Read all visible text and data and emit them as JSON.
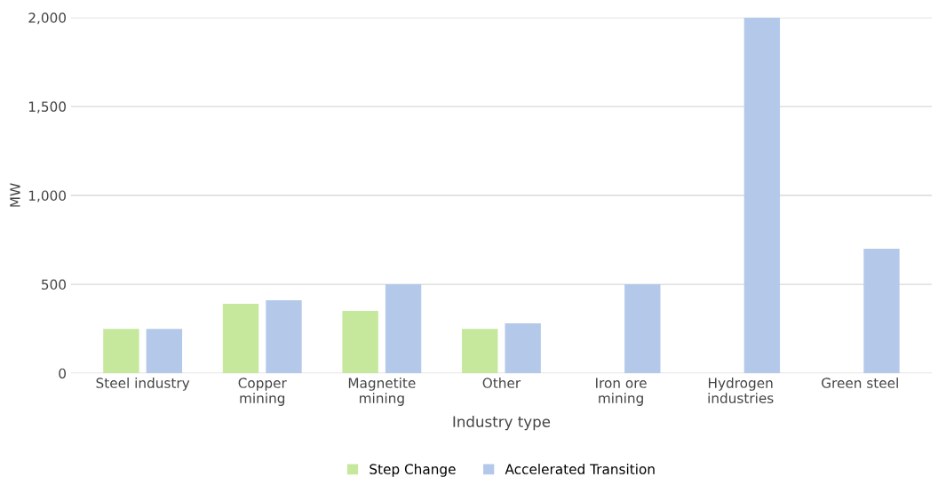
{
  "chart_data": {
    "type": "bar",
    "xlabel": "Industry type",
    "ylabel": "MW",
    "categories": [
      "Steel industry",
      "Copper\nmining",
      "Magnetite\nmining",
      "Other",
      "Iron ore\nmining",
      "Hydrogen\nindustries",
      "Green steel"
    ],
    "series": [
      {
        "name": "Step Change",
        "color": "#c5e89c",
        "values": [
          250,
          390,
          350,
          250,
          null,
          null,
          null
        ]
      },
      {
        "name": "Accelerated Transition",
        "color": "#b4c9ea",
        "values": [
          250,
          410,
          500,
          280,
          500,
          2000,
          700
        ]
      }
    ],
    "ylim": [
      0,
      2000
    ],
    "yticks": [
      0,
      {
        "value": 500,
        "label": "500"
      },
      {
        "value": 1000,
        "label": "1,000"
      },
      {
        "value": 1500,
        "label": "1,500"
      },
      {
        "value": 2000,
        "label": "2,000"
      }
    ],
    "grid": "y",
    "legend": "bottom"
  }
}
